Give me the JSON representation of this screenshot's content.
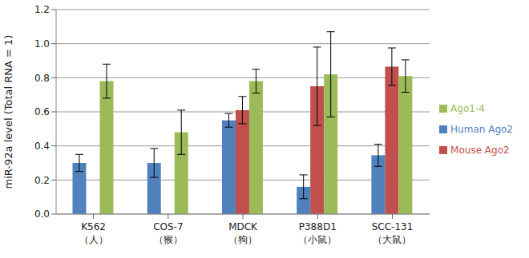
{
  "chart_data": {
    "type": "bar",
    "y_label": "miR-92a level (Total RNA = 1)",
    "categories": [
      "K562\n（人）",
      "COS-7\n（猴）",
      "MDCK\n（狗）",
      "P388D1\n（小鼠）",
      "SCC-131\n（大鼠）"
    ],
    "series": [
      {
        "name": "Human Ago2",
        "color": "#4f81bd",
        "values": [
          0.3,
          0.3,
          0.55,
          0.16,
          0.345
        ],
        "errors": [
          0.05,
          0.085,
          0.04,
          0.07,
          0.065
        ]
      },
      {
        "name": "Mouse Ago2",
        "color": "#c0504d",
        "values": [
          null,
          null,
          0.61,
          0.75,
          0.865
        ],
        "errors": [
          null,
          null,
          0.08,
          0.23,
          0.11
        ]
      },
      {
        "name": "Ago1-4",
        "color": "#9bbb59",
        "values": [
          0.78,
          0.48,
          0.78,
          0.82,
          0.81
        ],
        "errors": [
          0.1,
          0.13,
          0.07,
          0.25,
          0.095
        ]
      }
    ],
    "ylim": [
      0,
      1.2
    ],
    "yticks": [
      {
        "value": 0,
        "label": "0.0"
      },
      0.2,
      0.4,
      0.6,
      0.8,
      {
        "value": 1,
        "label": "1.0"
      },
      1.2
    ],
    "grid": true,
    "legend": "right"
  }
}
